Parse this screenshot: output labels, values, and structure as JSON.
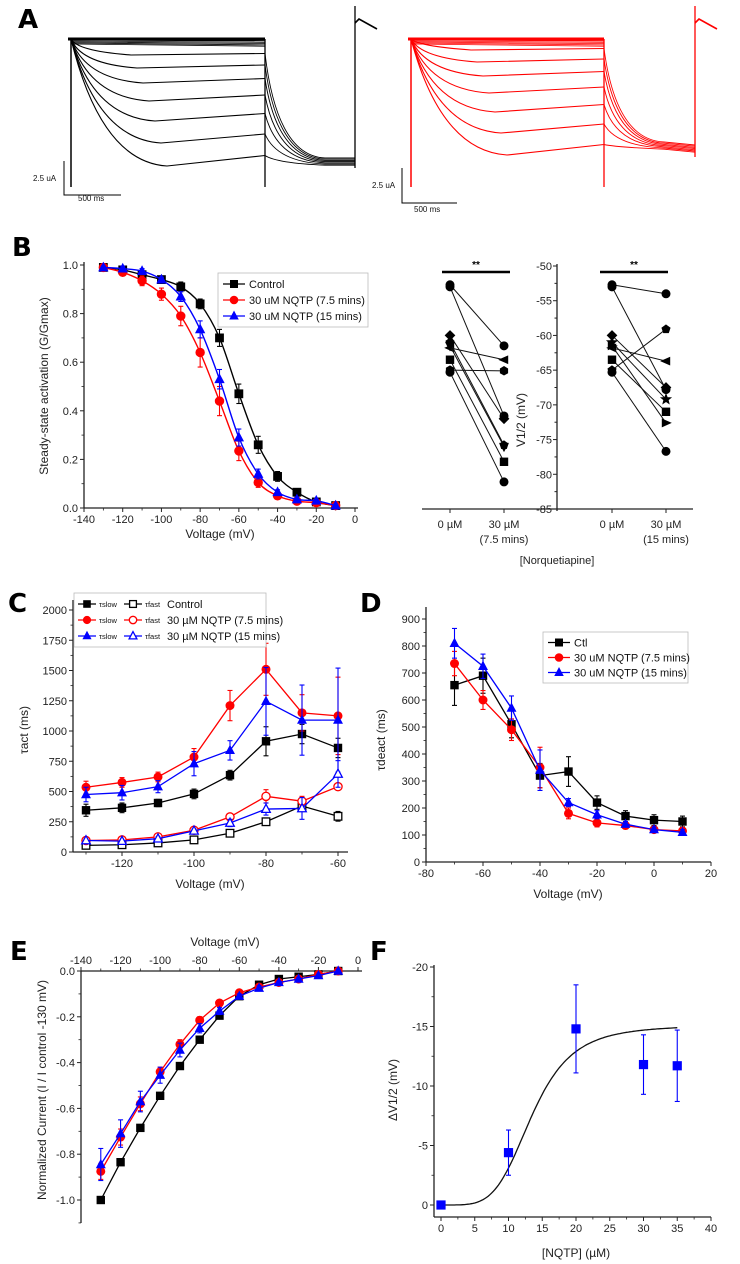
{
  "panels": {
    "A": {
      "letter": "A",
      "type": "traces",
      "control_color": "#000000",
      "drug_color": "#ff0000",
      "scale_current": "2.5 uA",
      "scale_time": "500 ms"
    },
    "B": {
      "letter": "B"
    },
    "C": {
      "letter": "C"
    },
    "D": {
      "letter": "D"
    },
    "E": {
      "letter": "E"
    },
    "F": {
      "letter": "F"
    }
  },
  "colors": {
    "control": "#000000",
    "nqtp_7_5": "#ff0000",
    "nqtp_15": "#0000ff",
    "panel_f": "#0000ff"
  },
  "chart_data": [
    {
      "id": "B-left",
      "type": "line",
      "title": "",
      "xlabel": "Voltage (mV)",
      "ylabel": "Steady-state activation (G/Gmax)",
      "xlim": [
        -140,
        0
      ],
      "ylim": [
        0.0,
        1.0
      ],
      "xticks": [
        -140,
        -120,
        -100,
        -80,
        -60,
        -40,
        -20,
        0
      ],
      "yticks": [
        0.0,
        0.2,
        0.4,
        0.6,
        0.8,
        1.0
      ],
      "legend_position": "top-right",
      "x": [
        -130,
        -120,
        -110,
        -100,
        -90,
        -80,
        -70,
        -60,
        -50,
        -40,
        -30,
        -20,
        -10
      ],
      "series": [
        {
          "name": "Control",
          "marker": "square",
          "color": "#000000",
          "values": [
            0.99,
            0.98,
            0.96,
            0.94,
            0.91,
            0.84,
            0.7,
            0.47,
            0.26,
            0.13,
            0.065,
            0.025,
            0.01
          ],
          "err": [
            0.01,
            0.01,
            0.01,
            0.01,
            0.02,
            0.02,
            0.035,
            0.04,
            0.035,
            0.02,
            0.01,
            0.005,
            0.005
          ]
        },
        {
          "name": "30 uM NQTP (7.5 mins)",
          "marker": "circle",
          "color": "#ff0000",
          "values": [
            0.99,
            0.97,
            0.935,
            0.88,
            0.79,
            0.64,
            0.44,
            0.235,
            0.105,
            0.05,
            0.028,
            0.022,
            0.01
          ],
          "err": [
            0.01,
            0.01,
            0.02,
            0.025,
            0.04,
            0.06,
            0.06,
            0.04,
            0.02,
            0.01,
            0.005,
            0.005,
            0.005
          ]
        },
        {
          "name": "30 uM NQTP (15 mins)",
          "marker": "triangle",
          "color": "#0000ff",
          "values": [
            0.99,
            0.985,
            0.975,
            0.94,
            0.87,
            0.735,
            0.53,
            0.29,
            0.14,
            0.065,
            0.035,
            0.03,
            0.01
          ],
          "err": [
            0.005,
            0.01,
            0.01,
            0.01,
            0.02,
            0.035,
            0.04,
            0.035,
            0.02,
            0.01,
            0.01,
            0.005,
            0.005
          ]
        }
      ]
    },
    {
      "id": "B-right",
      "type": "scatter",
      "title": "",
      "xlabel": "[Norquetiapine]",
      "ylabel": "V1/2 (mV)",
      "ylim": [
        -85,
        -50
      ],
      "yticks": [
        -85,
        -80,
        -75,
        -70,
        -65,
        -60,
        -55,
        -50
      ],
      "categories": [
        "0 µM",
        "30 µM (7.5 mins)",
        "0 µM",
        "30 µM (15 mins)"
      ],
      "significance": [
        "**",
        "**"
      ],
      "pairs_7_5": [
        {
          "marker": "circle",
          "before": -52.7,
          "after": -61.5
        },
        {
          "marker": "circle",
          "before": -53.0,
          "after": -71.6
        },
        {
          "marker": "diamond",
          "before": -60.0,
          "after": -72.0
        },
        {
          "marker": "triangle-left",
          "before": -61.8,
          "after": -63.5
        },
        {
          "marker": "pentagon",
          "before": -61.0,
          "after": -75.8
        },
        {
          "marker": "triangle-down",
          "before": -61.5,
          "after": -76.0
        },
        {
          "marker": "square",
          "before": -63.5,
          "after": -78.2
        },
        {
          "marker": "hexagon",
          "before": -65.0,
          "after": -65.1
        },
        {
          "marker": "circle",
          "before": -65.3,
          "after": -81.1
        }
      ],
      "pairs_15": [
        {
          "marker": "circle",
          "before": -52.7,
          "after": -54.0
        },
        {
          "marker": "circle",
          "before": -53.0,
          "after": -67.8
        },
        {
          "marker": "diamond",
          "before": -60.0,
          "after": -67.5
        },
        {
          "marker": "triangle-left",
          "before": -61.8,
          "after": -63.7
        },
        {
          "marker": "star",
          "before": -61.0,
          "after": -69.2
        },
        {
          "marker": "triangle-right",
          "before": -61.5,
          "after": -72.6
        },
        {
          "marker": "square",
          "before": -63.5,
          "after": -71.0
        },
        {
          "marker": "pentagon",
          "before": -65.0,
          "after": -59.1
        },
        {
          "marker": "circle",
          "before": -65.3,
          "after": -76.7
        }
      ]
    },
    {
      "id": "C",
      "type": "line",
      "title": "",
      "xlabel": "Voltage (mV)",
      "ylabel": "τact (ms)",
      "xlim": [
        -133,
        -57
      ],
      "ylim": [
        0,
        2000
      ],
      "xticks": [
        -120,
        -100,
        -80,
        -60
      ],
      "yticks": [
        0,
        250,
        500,
        750,
        1000,
        1250,
        1500,
        1750,
        2000
      ],
      "legend_position": "top-left",
      "x": [
        -130,
        -120,
        -110,
        -100,
        -90,
        -80,
        -70,
        -60
      ],
      "series": [
        {
          "name": "τslow Control",
          "marker": "square",
          "filled": true,
          "color": "#000000",
          "values": [
            345,
            365,
            405,
            480,
            635,
            915,
            975,
            860
          ],
          "err": [
            50,
            40,
            30,
            40,
            40,
            120,
            80,
            80
          ]
        },
        {
          "name": "τfast Control",
          "marker": "square",
          "filled": false,
          "color": "#000000",
          "values": [
            55,
            60,
            75,
            100,
            155,
            250,
            380,
            295
          ],
          "err": [
            10,
            10,
            10,
            15,
            20,
            30,
            40,
            40
          ]
        },
        {
          "name": "τslow 30 µM NQTP (7.5 mins)",
          "marker": "circle",
          "filled": true,
          "color": "#ff0000",
          "values": [
            535,
            575,
            620,
            785,
            1210,
            1510,
            1150,
            1125
          ],
          "err": [
            50,
            40,
            40,
            70,
            125,
            215,
            150,
            320
          ]
        },
        {
          "name": "τfast 30 µM NQTP (7.5 mins)",
          "marker": "circle",
          "filled": false,
          "color": "#ff0000",
          "values": [
            95,
            100,
            125,
            180,
            290,
            460,
            420,
            540
          ],
          "err": [
            10,
            10,
            15,
            20,
            25,
            55,
            40,
            25
          ]
        },
        {
          "name": "τslow 30 µM NQTP (15 mins)",
          "marker": "triangle",
          "filled": true,
          "color": "#0000ff",
          "values": [
            475,
            490,
            540,
            730,
            840,
            1245,
            1090,
            1090
          ],
          "err": [
            60,
            60,
            50,
            100,
            80,
            280,
            290,
            430
          ]
        },
        {
          "name": "τfast 30 µM NQTP (15 mins)",
          "marker": "triangle",
          "filled": false,
          "color": "#0000ff",
          "values": [
            95,
            90,
            110,
            175,
            240,
            355,
            360,
            645
          ],
          "err": [
            10,
            10,
            15,
            15,
            30,
            50,
            90,
            110
          ]
        }
      ],
      "legend": [
        {
          "slow": "τslow",
          "fast": "τfast",
          "label": "Control"
        },
        {
          "slow": "τslow",
          "fast": "τfast",
          "label": "30 µM NQTP (7.5 mins)"
        },
        {
          "slow": "τslow",
          "fast": "τfast",
          "label": "30 µM NQTP (15 mins)"
        }
      ]
    },
    {
      "id": "D",
      "type": "line",
      "title": "",
      "xlabel": "Voltage (mV)",
      "ylabel": "τdeact (ms)",
      "xlim": [
        -80,
        20
      ],
      "ylim": [
        0,
        900
      ],
      "xticks": [
        -80,
        -60,
        -40,
        -20,
        0,
        20
      ],
      "yticks": [
        0,
        100,
        200,
        300,
        400,
        500,
        600,
        700,
        800,
        900
      ],
      "legend_position": "top-right",
      "x": [
        -70,
        -60,
        -50,
        -40,
        -30,
        -20,
        -10,
        0,
        10
      ],
      "series": [
        {
          "name": "Ctl",
          "marker": "square",
          "color": "#000000",
          "values": [
            655,
            690,
            510,
            320,
            335,
            220,
            170,
            155,
            150
          ],
          "err": [
            75,
            65,
            50,
            45,
            55,
            25,
            20,
            20,
            20
          ]
        },
        {
          "name": "30 uM NQTP (7.5 mins)",
          "marker": "circle",
          "color": "#ff0000",
          "values": [
            735,
            600,
            490,
            350,
            180,
            145,
            135,
            120,
            115
          ],
          "err": [
            45,
            35,
            40,
            75,
            20,
            15,
            10,
            10,
            10
          ]
        },
        {
          "name": "30 uM NQTP (15 mins)",
          "marker": "triangle",
          "color": "#0000ff",
          "values": [
            810,
            725,
            570,
            340,
            220,
            175,
            140,
            120,
            110
          ],
          "err": [
            55,
            45,
            45,
            75,
            15,
            15,
            10,
            10,
            10
          ]
        }
      ]
    },
    {
      "id": "E",
      "type": "line",
      "title": "",
      "xlabel": "Voltage (mV)",
      "ylabel": "Normalized Current (I / I control -130 mV)",
      "xlim": [
        -140,
        0
      ],
      "ylim": [
        -1.1,
        0.0
      ],
      "xticks": [
        -140,
        -120,
        -100,
        -80,
        -60,
        -40,
        -20,
        0
      ],
      "yticks": [
        0.0,
        -0.2,
        -0.4,
        -0.6,
        -0.8,
        -1.0
      ],
      "x_axis_position": "top",
      "x": [
        -130,
        -120,
        -110,
        -100,
        -90,
        -80,
        -70,
        -60,
        -50,
        -40,
        -30,
        -20,
        -10
      ],
      "series": [
        {
          "name": "Control",
          "marker": "square",
          "color": "#000000",
          "values": [
            -1.0,
            -0.835,
            -0.685,
            -0.545,
            -0.415,
            -0.3,
            -0.195,
            -0.11,
            -0.06,
            -0.035,
            -0.025,
            -0.015,
            0.0
          ]
        },
        {
          "name": "30 uM NQTP (7.5 mins)",
          "marker": "circle",
          "color": "#ff0000",
          "values": [
            -0.875,
            -0.725,
            -0.58,
            -0.44,
            -0.32,
            -0.215,
            -0.14,
            -0.095,
            -0.07,
            -0.05,
            -0.035,
            -0.015,
            0.0
          ],
          "err": [
            0.035,
            0.035,
            0.03,
            0.02,
            0.02,
            0.015,
            0.01,
            0.01,
            0.005,
            0.005,
            0.005,
            0.005,
            0.005
          ]
        },
        {
          "name": "30 uM NQTP (15 mins)",
          "marker": "triangle",
          "color": "#0000ff",
          "values": [
            -0.845,
            -0.71,
            -0.57,
            -0.455,
            -0.345,
            -0.25,
            -0.175,
            -0.11,
            -0.075,
            -0.05,
            -0.035,
            -0.02,
            0.0
          ],
          "err": [
            0.07,
            0.06,
            0.045,
            0.035,
            0.03,
            0.02,
            0.015,
            0.01,
            0.01,
            0.005,
            0.005,
            0.005,
            0.005
          ]
        }
      ]
    },
    {
      "id": "F",
      "type": "scatter",
      "title": "",
      "xlabel": "[NQTP] (µM)",
      "ylabel": "ΔV1/2 (mV)",
      "xlim": [
        0,
        40
      ],
      "ylim": [
        0,
        -20
      ],
      "xticks": [
        0,
        5,
        10,
        15,
        20,
        25,
        30,
        35,
        40
      ],
      "yticks": [
        0,
        -5,
        -10,
        -15,
        -20
      ],
      "x": [
        0,
        10,
        20,
        30,
        35
      ],
      "series": [
        {
          "name": "ΔV1/2",
          "marker": "square",
          "color": "#0000ff",
          "values": [
            0,
            -4.4,
            -14.8,
            -11.8,
            -11.7
          ],
          "err": [
            0,
            1.9,
            3.7,
            2.5,
            3.0
          ]
        }
      ],
      "fit": {
        "type": "hill",
        "max": -15.1,
        "ec50": 13.5,
        "n": 4.5,
        "range": [
          0,
          35
        ]
      }
    }
  ]
}
